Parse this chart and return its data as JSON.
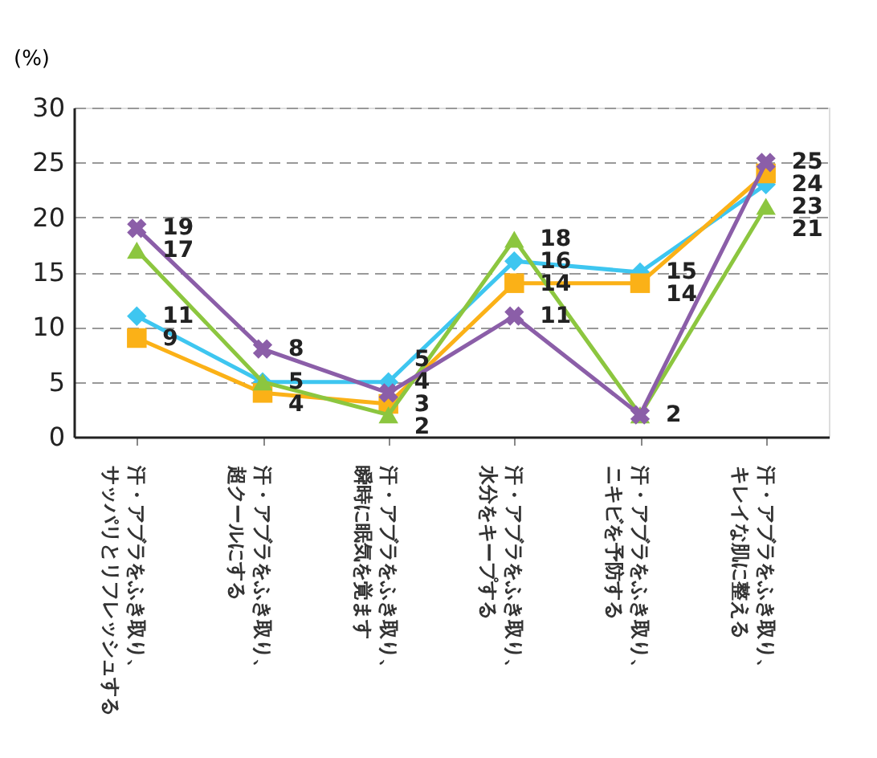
{
  "chart_data": {
    "type": "line",
    "ylabel": "(%)",
    "categories": [
      "汗・アブラをふき取り、サッパリとリフレッシュする",
      "汗・アブラをふき取り、超クールにする",
      "汗・アブラをふき取り、瞬時に眠気を覚ます",
      "汗・アブラをふき取り、水分をキープする",
      "汗・アブラをふき取り、ニキビを予防する",
      "汗・アブラをふき取り、キレイな肌に整える"
    ],
    "series": [
      {
        "color": "#3ec6f0",
        "marker": "diamond",
        "values": [
          11,
          5,
          5,
          16,
          15,
          23
        ],
        "value_labels": [
          "11",
          "5",
          "5",
          "16",
          "15",
          "23"
        ]
      },
      {
        "color": "#fbb117",
        "marker": "square",
        "values": [
          9,
          4,
          3,
          14,
          14,
          24
        ],
        "value_labels": [
          "9",
          "4",
          "3",
          "14",
          "14",
          "24"
        ]
      },
      {
        "color": "#8cc63f",
        "marker": "triangle",
        "values": [
          17,
          5,
          2,
          18,
          2,
          21
        ],
        "value_labels": [
          "17",
          null,
          "2",
          "18",
          "2",
          "21"
        ]
      },
      {
        "color": "#8b5ea8",
        "marker": "cross",
        "values": [
          19,
          8,
          4,
          11,
          2,
          25
        ],
        "value_labels": [
          "19",
          "8",
          "4",
          "11",
          null,
          "25"
        ]
      }
    ],
    "ylim": [
      0,
      30
    ],
    "yticks": [
      0,
      5,
      10,
      15,
      20,
      25,
      30
    ],
    "grid": "y",
    "line_style": "solid"
  }
}
